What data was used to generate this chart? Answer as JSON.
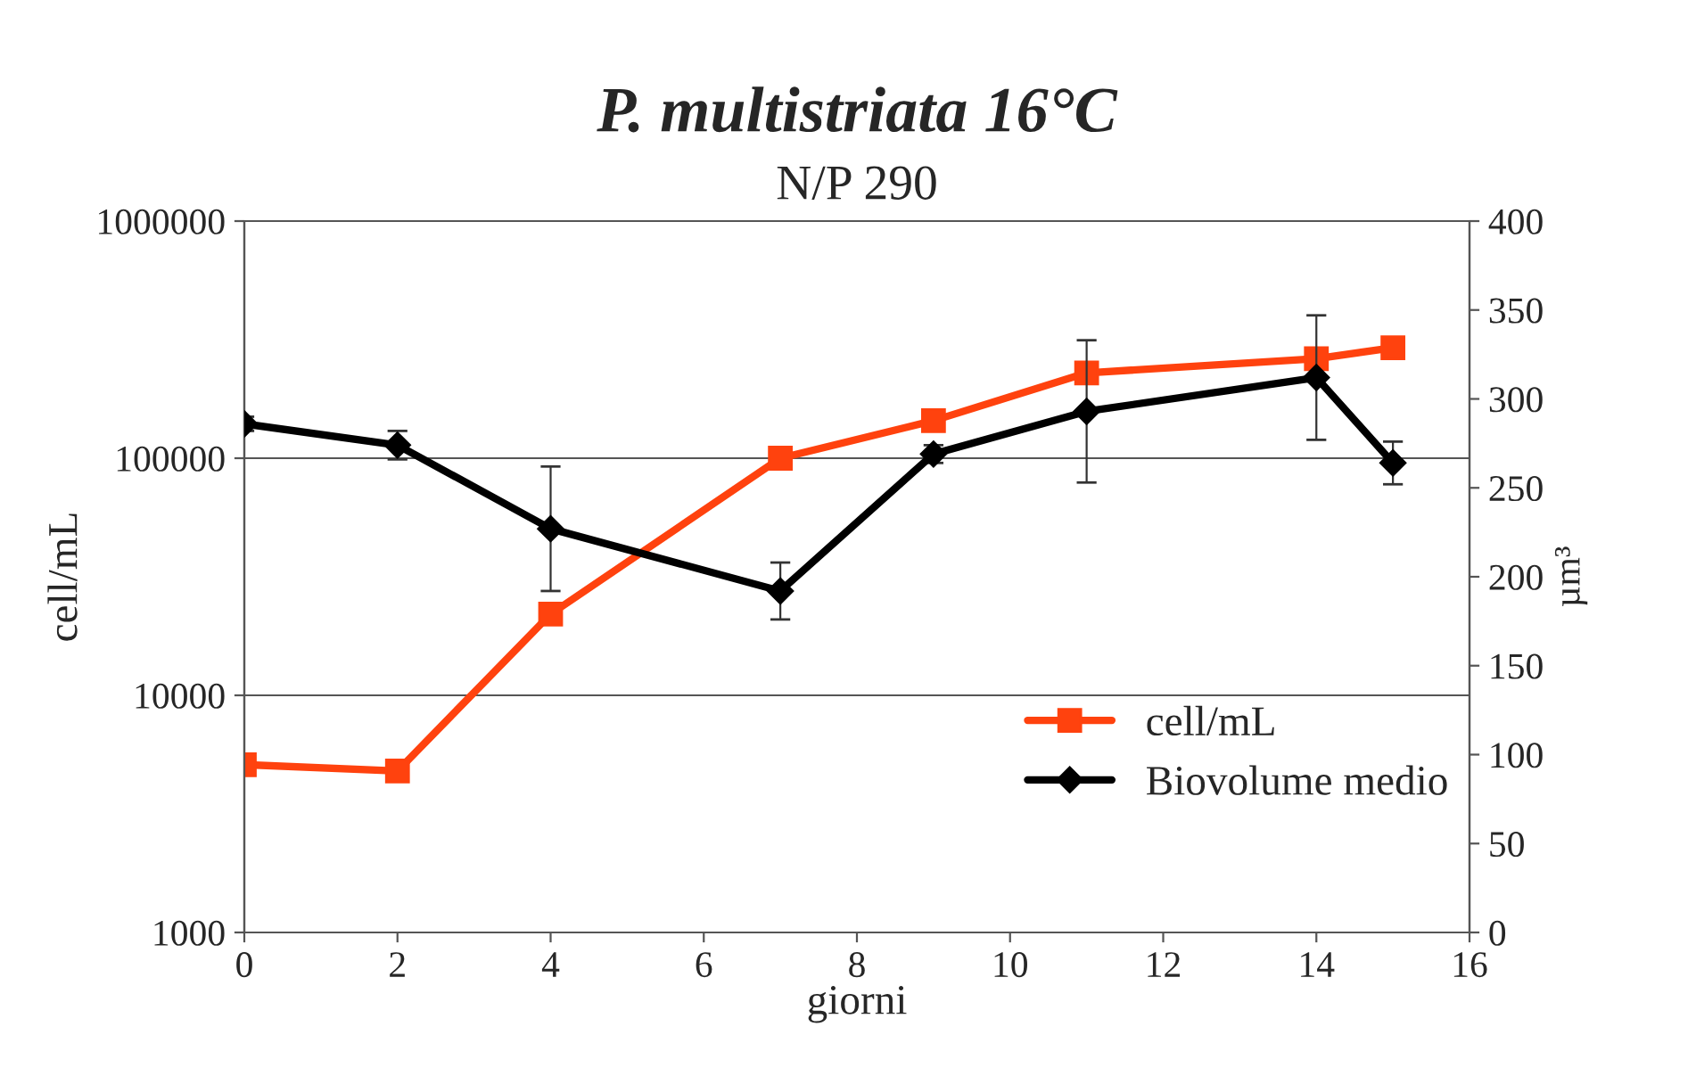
{
  "chart_data": {
    "type": "line",
    "title": "P. multistriata 16°C",
    "subtitle": "N/P 290",
    "xlabel": "giorni",
    "ylabel": "cell/mL",
    "y2label": "µm³",
    "x": [
      0,
      2,
      4,
      7,
      9,
      11,
      14,
      15
    ],
    "series": [
      {
        "name": "cell/mL",
        "color": "#ff420e",
        "marker": "square",
        "values": [
          5100,
          4800,
          22000,
          100000,
          144000,
          229000,
          263000,
          292000
        ]
      },
      {
        "name": "Biovolume medio",
        "color": "#000000",
        "marker": "diamond",
        "axis": "y2",
        "values": [
          286,
          274,
          227,
          192,
          269,
          293,
          312,
          264
        ],
        "errors": [
          4,
          8,
          35,
          16,
          5,
          40,
          35,
          12
        ]
      }
    ],
    "log": "y",
    "xlim": [
      0,
      16
    ],
    "xticks": [
      0,
      2,
      4,
      6,
      8,
      10,
      12,
      14,
      16
    ],
    "ylim": [
      1000,
      1000000
    ],
    "yticks": [
      1000,
      10000,
      100000,
      1000000
    ],
    "y2lim": [
      0,
      400
    ],
    "y2ticks": [
      0,
      50,
      100,
      150,
      200,
      250,
      300,
      350,
      400
    ],
    "grid": "y",
    "legend": "right",
    "line_style": "solid"
  }
}
